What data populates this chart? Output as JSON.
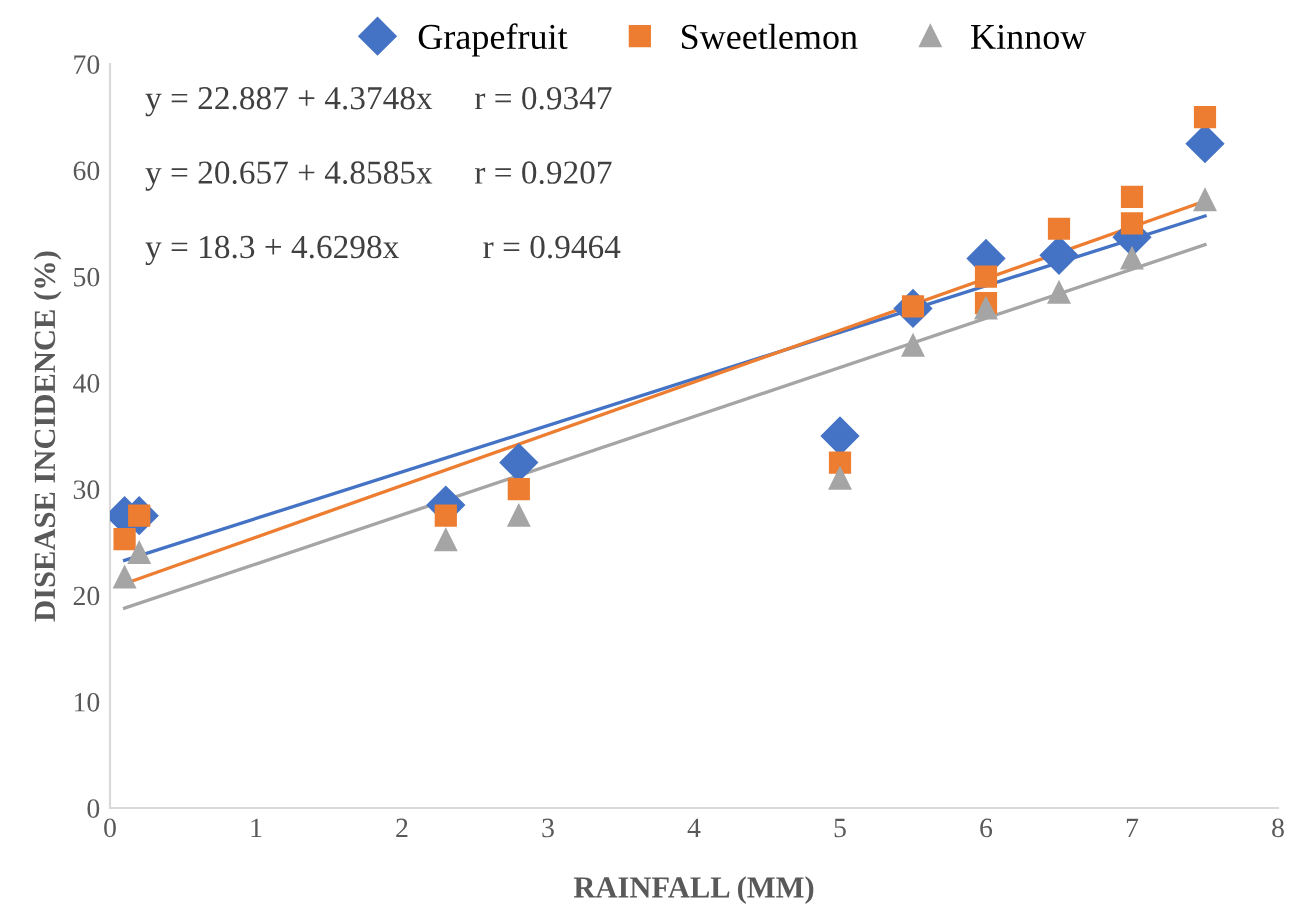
{
  "chart_data": {
    "type": "scatter",
    "xlabel": "RAINFALL (MM)",
    "ylabel": "DISEASE INCIDENCE (%)",
    "xlim": [
      0,
      8
    ],
    "xticks": [
      0,
      1,
      2,
      3,
      4,
      5,
      6,
      7,
      8
    ],
    "ylim": [
      0,
      70
    ],
    "yticks": [
      0,
      10,
      20,
      30,
      40,
      50,
      60,
      70
    ],
    "grid": false,
    "legend": "top",
    "series": [
      {
        "name": "Grapefruit",
        "color": "#4472c4",
        "marker": "diamond",
        "x": [
          0.1,
          0.2,
          2.3,
          2.8,
          5,
          5.5,
          6,
          6.5,
          7,
          7.5
        ],
        "values": [
          27.5,
          27.5,
          28.5,
          32.5,
          35,
          47,
          51.7,
          52,
          53.7,
          62.5
        ]
      },
      {
        "name": "Sweetlemon",
        "color": "#ed7d31",
        "marker": "square",
        "x": [
          0.1,
          0.2,
          2.3,
          2.8,
          5,
          5.5,
          6,
          6,
          6.5,
          7,
          7,
          7.5
        ],
        "values": [
          25.3,
          27.5,
          27.5,
          30,
          32.5,
          47.2,
          47.5,
          50,
          54.5,
          55,
          57.5,
          65
        ]
      },
      {
        "name": "Kinnow",
        "color": "#a5a5a5",
        "marker": "triangle",
        "x": [
          0.1,
          0.2,
          2.3,
          2.8,
          5,
          5.5,
          6,
          6.5,
          7,
          7.5
        ],
        "values": [
          21.7,
          24,
          25.2,
          27.5,
          31,
          43.5,
          47,
          48.5,
          51.7,
          57.2
        ]
      },
      {
        "type": "line",
        "color": "#4472c4",
        "x": [
          0.1,
          7.5
        ],
        "values": [
          23.3,
          55.7
        ]
      },
      {
        "type": "line",
        "color": "#ed7d31",
        "x": [
          0.1,
          7.5
        ],
        "values": [
          21.1,
          57.1
        ]
      },
      {
        "type": "line",
        "color": "#a5a5a5",
        "x": [
          0.1,
          7.5
        ],
        "values": [
          18.8,
          53.0
        ]
      }
    ],
    "annotations": [
      "y = 22.887 + 4.3748x     r = 0.9347",
      "y = 20.657 + 4.8585x     r = 0.9207",
      "y = 18.3 + 4.6298x          r = 0.9464"
    ]
  }
}
